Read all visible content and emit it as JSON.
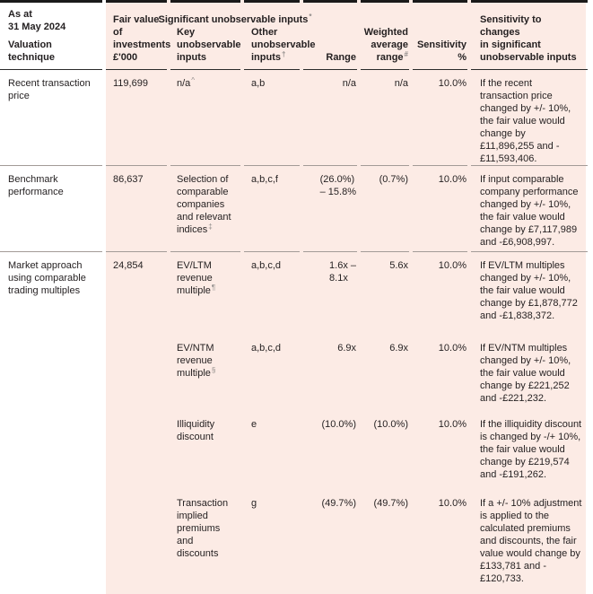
{
  "table": {
    "top_left_header": "As at\n31 May 2024",
    "group_header": "Significant unobservable inputs",
    "group_header_mark": "*",
    "columns": [
      {
        "label": "Valuation technique",
        "mark": ""
      },
      {
        "label": "Fair value of\ninvestments\n£'000",
        "mark": ""
      },
      {
        "label": "Key\nunobservable\ninputs",
        "mark": ""
      },
      {
        "label": "Other\nunobservable\ninputs",
        "mark": "†"
      },
      {
        "label": "Range",
        "mark": ""
      },
      {
        "label": "Weighted\naverage\nrange",
        "mark": "#"
      },
      {
        "label": "Sensitivity\n%",
        "mark": ""
      },
      {
        "label": "Sensitivity to changes\nin significant\nunobservable inputs",
        "mark": ""
      }
    ],
    "rows": [
      {
        "technique": "Recent transaction price",
        "fair_value": "119,699",
        "key_input": "n/a",
        "key_input_mark": "^",
        "other_inputs": "a,b",
        "range": "n/a",
        "weighted_average": "n/a",
        "sensitivity": "10.0%",
        "description": "If the recent transaction price changed by +/- 10%, the fair value would change by £11,896,255 and -£11,593,406."
      },
      {
        "technique": "Benchmark performance",
        "fair_value": "86,637",
        "key_input": "Selection of comparable companies and relevant indices",
        "key_input_mark": "‡",
        "other_inputs": "a,b,c,f",
        "range": "(26.0%)\n– 15.8%",
        "weighted_average": "(0.7%)",
        "sensitivity": "10.0%",
        "description": "If input comparable company performance changed by +/- 10%, the fair value would change by £7,117,989 and -£6,908,997."
      },
      {
        "technique": "Market approach using comparable trading multiples",
        "fair_value": "24,854",
        "key_input": "EV/LTM revenue multiple",
        "key_input_mark": "¶",
        "other_inputs": "a,b,c,d",
        "range": "1.6x –\n8.1x",
        "weighted_average": "5.6x",
        "sensitivity": "10.0%",
        "description": "If EV/LTM multiples changed by +/- 10%, the fair value would change by £1,878,772 and -£1,838,372."
      },
      {
        "sub": true,
        "technique": "",
        "fair_value": "",
        "key_input": "EV/NTM revenue multiple",
        "key_input_mark": "§",
        "other_inputs": "a,b,c,d",
        "range": "6.9x",
        "weighted_average": "6.9x",
        "sensitivity": "10.0%",
        "description": "If EV/NTM multiples changed by +/- 10%, the fair value would change by £221,252 and -£221,232."
      },
      {
        "sub": true,
        "technique": "",
        "fair_value": "",
        "key_input": "Illiquidity discount",
        "key_input_mark": "",
        "other_inputs": "e",
        "range": "(10.0%)",
        "weighted_average": "(10.0%)",
        "sensitivity": "10.0%",
        "description": "If the illiquidity discount is changed by -/+ 10%, the fair value would change by £219,574 and -£191,262."
      },
      {
        "sub": true,
        "technique": "",
        "fair_value": "",
        "key_input": "Transaction implied premiums and discounts",
        "key_input_mark": "",
        "other_inputs": "g",
        "range": "(49.7%)",
        "weighted_average": "(49.7%)",
        "sensitivity": "10.0%",
        "description": "If a +/- 10% adjustment is applied to the calculated premiums and discounts, the fair value would change by £133,781 and -£120,733."
      }
    ]
  }
}
